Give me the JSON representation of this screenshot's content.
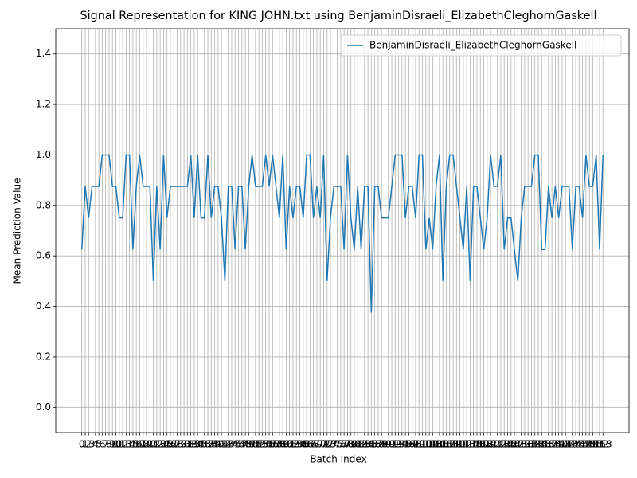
{
  "chart_data": {
    "type": "line",
    "title": "Signal Representation for KING JOHN.txt using BenjaminDisraeli_ElizabethCleghornGaskell",
    "x_label": "Batch Index",
    "y_label": "Mean Prediction Value",
    "x": [
      0,
      1,
      2,
      3,
      4,
      5,
      6,
      7,
      8,
      9,
      10,
      11,
      12,
      13,
      14,
      15,
      16,
      17,
      18,
      19,
      20,
      21,
      22,
      23,
      24,
      25,
      26,
      27,
      28,
      29,
      30,
      31,
      32,
      33,
      34,
      35,
      36,
      37,
      38,
      39,
      40,
      41,
      42,
      43,
      44,
      45,
      46,
      47,
      48,
      49,
      50,
      51,
      52,
      53,
      54,
      55,
      56,
      57,
      58,
      59,
      60,
      61,
      62,
      63,
      64,
      65,
      66,
      67,
      68,
      69,
      70,
      71,
      72,
      73,
      74,
      75,
      76,
      77,
      78,
      79,
      80,
      81,
      82,
      83,
      84,
      85,
      86,
      87,
      88,
      89,
      90,
      91,
      92,
      93,
      94,
      95,
      96,
      97,
      98,
      99,
      100,
      101,
      102,
      103,
      104,
      105,
      106,
      107,
      108,
      109,
      110,
      111,
      112,
      113,
      114,
      115,
      116,
      117,
      118,
      119,
      120,
      121,
      122,
      123,
      124,
      125,
      126,
      127,
      128,
      129,
      130,
      131,
      132,
      133,
      134,
      135,
      136,
      137,
      138,
      139,
      140,
      141,
      142,
      143,
      144,
      145,
      146,
      147,
      148,
      149,
      150,
      151,
      152,
      153
    ],
    "series": [
      {
        "name": "BenjaminDisraeli_ElizabethCleghornGaskell",
        "color": "#1f77b4",
        "values": [
          0.625,
          0.875,
          0.75,
          0.875,
          0.875,
          0.875,
          1.0,
          1.0,
          1.0,
          0.875,
          0.875,
          0.75,
          0.75,
          1.0,
          1.0,
          0.625,
          0.875,
          1.0,
          0.875,
          0.875,
          0.875,
          0.5,
          0.875,
          0.625,
          1.0,
          0.75,
          0.875,
          0.875,
          0.875,
          0.875,
          0.875,
          0.875,
          1.0,
          0.75,
          1.0,
          0.75,
          0.75,
          1.0,
          0.75,
          0.875,
          0.875,
          0.75,
          0.5,
          0.875,
          0.875,
          0.625,
          0.875,
          0.875,
          0.625,
          0.875,
          1.0,
          0.875,
          0.875,
          0.875,
          1.0,
          0.875,
          1.0,
          0.875,
          0.75,
          1.0,
          0.625,
          0.875,
          0.75,
          0.875,
          0.875,
          0.75,
          1.0,
          1.0,
          0.75,
          0.875,
          0.75,
          1.0,
          0.5,
          0.75,
          0.875,
          0.875,
          0.875,
          0.625,
          1.0,
          0.75,
          0.625,
          0.875,
          0.625,
          0.875,
          0.875,
          0.375,
          0.875,
          0.875,
          0.75,
          0.75,
          0.75,
          0.875,
          1.0,
          1.0,
          1.0,
          0.75,
          0.875,
          0.875,
          0.75,
          1.0,
          1.0,
          0.625,
          0.75,
          0.625,
          0.875,
          1.0,
          0.5,
          0.875,
          1.0,
          1.0,
          0.875,
          0.75,
          0.625,
          0.875,
          0.5,
          0.875,
          0.875,
          0.75,
          0.625,
          0.75,
          1.0,
          0.875,
          0.875,
          1.0,
          0.625,
          0.75,
          0.75,
          0.625,
          0.5,
          0.75,
          0.875,
          0.875,
          0.875,
          1.0,
          1.0,
          0.625,
          0.625,
          0.875,
          0.75,
          0.875,
          0.75,
          0.875,
          0.875,
          0.875,
          0.625,
          0.875,
          0.875,
          0.75,
          1.0,
          0.875,
          0.875,
          1.0,
          0.625,
          1.0
        ]
      }
    ],
    "xlim": [
      -7.65,
      160.65
    ],
    "xticks": [
      0,
      1,
      2,
      3,
      4,
      5,
      6,
      7,
      8,
      9,
      10,
      11,
      12,
      13,
      14,
      15,
      16,
      17,
      18,
      19,
      20,
      21,
      22,
      23,
      24,
      25,
      26,
      27,
      28,
      29,
      30,
      31,
      32,
      33,
      34,
      35,
      36,
      37,
      38,
      39,
      40,
      41,
      42,
      43,
      44,
      45,
      46,
      47,
      48,
      49,
      50,
      51,
      52,
      53,
      54,
      55,
      56,
      57,
      58,
      59,
      60,
      61,
      62,
      63,
      64,
      65,
      66,
      67,
      68,
      69,
      70,
      71,
      72,
      73,
      74,
      75,
      76,
      77,
      78,
      79,
      80,
      81,
      82,
      83,
      84,
      85,
      86,
      87,
      88,
      89,
      90,
      91,
      92,
      93,
      94,
      95,
      96,
      97,
      98,
      99,
      100,
      101,
      102,
      103,
      104,
      105,
      106,
      107,
      108,
      109,
      110,
      111,
      112,
      113,
      114,
      115,
      116,
      117,
      118,
      119,
      120,
      121,
      122,
      123,
      124,
      125,
      126,
      127,
      128,
      129,
      130,
      131,
      132,
      133,
      134,
      135,
      136,
      137,
      138,
      139,
      140,
      141,
      142,
      143,
      144,
      145,
      146,
      147,
      148,
      149,
      150,
      151,
      152,
      153
    ],
    "ylim": [
      -0.1,
      1.5
    ],
    "yticks": [
      {
        "value": 0,
        "label": "0.0"
      },
      0.2,
      0.4,
      0.6,
      0.8,
      {
        "value": 1,
        "label": "1.0"
      },
      1.2,
      1.4
    ],
    "grid": true,
    "legend": "upper right"
  }
}
